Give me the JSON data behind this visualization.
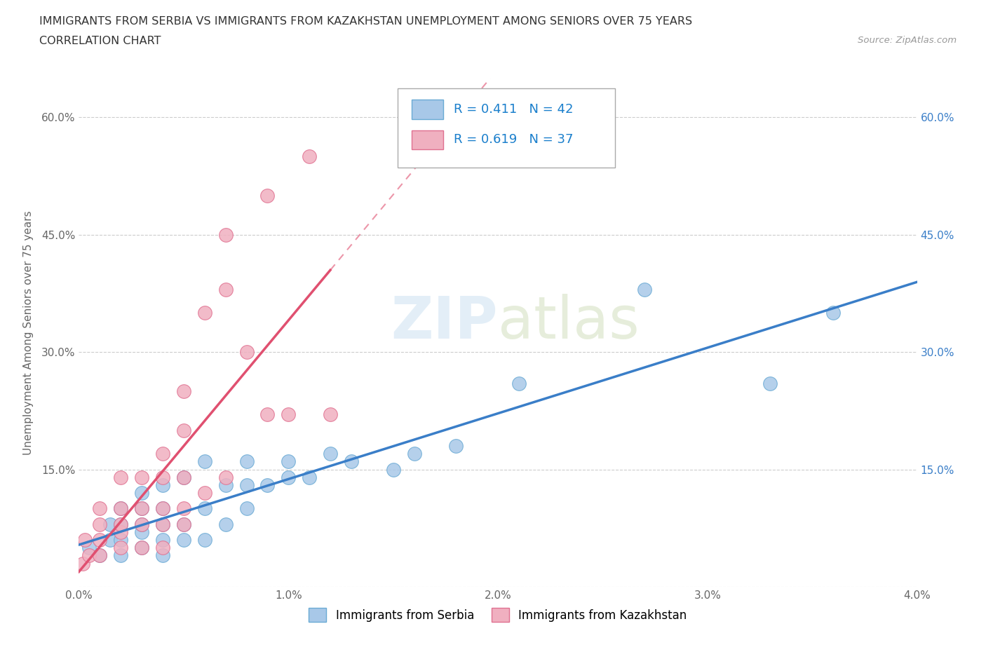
{
  "title_line1": "IMMIGRANTS FROM SERBIA VS IMMIGRANTS FROM KAZAKHSTAN UNEMPLOYMENT AMONG SENIORS OVER 75 YEARS",
  "title_line2": "CORRELATION CHART",
  "source": "Source: ZipAtlas.com",
  "ylabel": "Unemployment Among Seniors over 75 years",
  "xlim": [
    0.0,
    0.04
  ],
  "ylim": [
    0.0,
    0.65
  ],
  "xticks": [
    0.0,
    0.01,
    0.02,
    0.03,
    0.04
  ],
  "xticklabels": [
    "0.0%",
    "1.0%",
    "2.0%",
    "3.0%",
    "4.0%"
  ],
  "yticks": [
    0.0,
    0.15,
    0.3,
    0.45,
    0.6
  ],
  "yticklabels": [
    "",
    "15.0%",
    "30.0%",
    "45.0%",
    "60.0%"
  ],
  "serbia_color": "#a8c8e8",
  "serbia_edge": "#6aaad4",
  "kazakhstan_color": "#f0b0c0",
  "kazakhstan_edge": "#e07090",
  "serbia_R": 0.411,
  "serbia_N": 42,
  "kazakhstan_R": 0.619,
  "kazakhstan_N": 37,
  "legend_color": "#1a7fcc",
  "serbia_line_color": "#3a7ec8",
  "kazakhstan_line_color": "#e05070",
  "serbia_scatter_x": [
    0.0005,
    0.001,
    0.0015,
    0.0015,
    0.002,
    0.002,
    0.002,
    0.002,
    0.003,
    0.003,
    0.003,
    0.003,
    0.003,
    0.004,
    0.004,
    0.004,
    0.004,
    0.004,
    0.005,
    0.005,
    0.005,
    0.006,
    0.006,
    0.006,
    0.007,
    0.007,
    0.008,
    0.008,
    0.008,
    0.009,
    0.01,
    0.01,
    0.011,
    0.012,
    0.013,
    0.015,
    0.016,
    0.018,
    0.021,
    0.027,
    0.033,
    0.036
  ],
  "serbia_scatter_y": [
    0.05,
    0.04,
    0.06,
    0.08,
    0.04,
    0.06,
    0.08,
    0.1,
    0.05,
    0.07,
    0.08,
    0.1,
    0.12,
    0.04,
    0.06,
    0.08,
    0.1,
    0.13,
    0.06,
    0.08,
    0.14,
    0.06,
    0.1,
    0.16,
    0.08,
    0.13,
    0.1,
    0.13,
    0.16,
    0.13,
    0.14,
    0.16,
    0.14,
    0.17,
    0.16,
    0.15,
    0.17,
    0.18,
    0.26,
    0.38,
    0.26,
    0.35
  ],
  "kazakhstan_scatter_x": [
    0.0002,
    0.0003,
    0.0005,
    0.001,
    0.001,
    0.001,
    0.001,
    0.002,
    0.002,
    0.002,
    0.002,
    0.002,
    0.003,
    0.003,
    0.003,
    0.003,
    0.004,
    0.004,
    0.004,
    0.004,
    0.004,
    0.005,
    0.005,
    0.005,
    0.005,
    0.005,
    0.006,
    0.006,
    0.007,
    0.007,
    0.007,
    0.008,
    0.009,
    0.009,
    0.01,
    0.011,
    0.012
  ],
  "kazakhstan_scatter_y": [
    0.03,
    0.06,
    0.04,
    0.04,
    0.06,
    0.08,
    0.1,
    0.05,
    0.07,
    0.08,
    0.1,
    0.14,
    0.05,
    0.08,
    0.1,
    0.14,
    0.05,
    0.08,
    0.1,
    0.14,
    0.17,
    0.08,
    0.1,
    0.14,
    0.2,
    0.25,
    0.12,
    0.35,
    0.14,
    0.38,
    0.45,
    0.3,
    0.22,
    0.5,
    0.22,
    0.55,
    0.22
  ]
}
